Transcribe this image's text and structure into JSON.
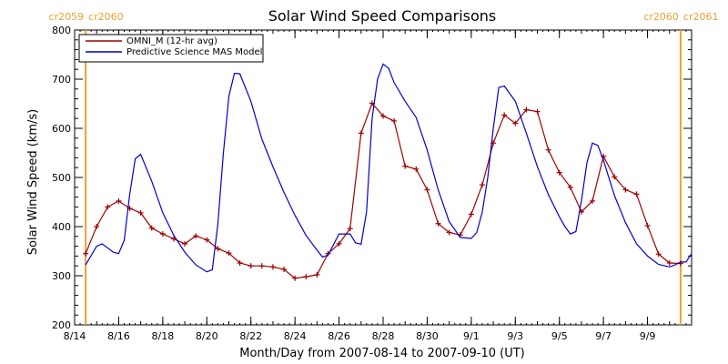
{
  "chart_data": {
    "type": "line",
    "title": "Solar Wind Speed Comparisons",
    "xlabel": "Month/Day from 2007-08-14 to 2007-09-10 (UT)",
    "ylabel": "Solar Wind Speed (km/s)",
    "ylim": [
      200,
      800
    ],
    "xlim": [
      "2007-08-14",
      "2007-09-10"
    ],
    "y_ticks": [
      200,
      300,
      400,
      500,
      600,
      700,
      800
    ],
    "x_ticks": [
      {
        "date": "2007-08-14",
        "label": "8/14"
      },
      {
        "date": "2007-08-16",
        "label": "8/16"
      },
      {
        "date": "2007-08-18",
        "label": "8/18"
      },
      {
        "date": "2007-08-20",
        "label": "8/20"
      },
      {
        "date": "2007-08-22",
        "label": "8/22"
      },
      {
        "date": "2007-08-24",
        "label": "8/24"
      },
      {
        "date": "2007-08-26",
        "label": "8/26"
      },
      {
        "date": "2007-08-28",
        "label": "8/28"
      },
      {
        "date": "2007-08-30",
        "label": "8/30"
      },
      {
        "date": "2007-09-01",
        "label": "9/1"
      },
      {
        "date": "2007-09-03",
        "label": "9/3"
      },
      {
        "date": "2007-09-05",
        "label": "9/5"
      },
      {
        "date": "2007-09-07",
        "label": "9/7"
      },
      {
        "date": "2007-09-09",
        "label": "9/9"
      }
    ],
    "legend_position": "top-left",
    "carrington_markers": [
      {
        "date": "2007-08-14 12:00",
        "left": "cr2059",
        "right": "cr2060"
      },
      {
        "date": "2007-09-10 12:00",
        "left": "cr2060",
        "right": "cr2061"
      }
    ],
    "series": [
      {
        "name": "OMNI_M (12-hr avg)",
        "color": "#a00000",
        "marker": "plus",
        "points": [
          [
            "2007-08-14 12:00",
            345
          ],
          [
            "2007-08-15 00:00",
            400
          ],
          [
            "2007-08-15 12:00",
            440
          ],
          [
            "2007-08-16 00:00",
            452
          ],
          [
            "2007-08-16 12:00",
            437
          ],
          [
            "2007-08-17 00:00",
            428
          ],
          [
            "2007-08-17 12:00",
            397
          ],
          [
            "2007-08-18 00:00",
            385
          ],
          [
            "2007-08-18 12:00",
            375
          ],
          [
            "2007-08-19 00:00",
            365
          ],
          [
            "2007-08-19 12:00",
            381
          ],
          [
            "2007-08-20 00:00",
            373
          ],
          [
            "2007-08-20 12:00",
            355
          ],
          [
            "2007-08-21 00:00",
            346
          ],
          [
            "2007-08-21 12:00",
            326
          ],
          [
            "2007-08-22 00:00",
            320
          ],
          [
            "2007-08-22 12:00",
            320
          ],
          [
            "2007-08-23 00:00",
            318
          ],
          [
            "2007-08-23 12:00",
            313
          ],
          [
            "2007-08-24 00:00",
            295
          ],
          [
            "2007-08-24 12:00",
            298
          ],
          [
            "2007-08-25 00:00",
            302
          ],
          [
            "2007-08-25 12:00",
            345
          ],
          [
            "2007-08-26 00:00",
            365
          ],
          [
            "2007-08-26 12:00",
            396
          ],
          [
            "2007-08-27 00:00",
            590
          ],
          [
            "2007-08-27 12:00",
            651
          ],
          [
            "2007-08-28 00:00",
            625
          ],
          [
            "2007-08-28 12:00",
            615
          ],
          [
            "2007-08-29 00:00",
            523
          ],
          [
            "2007-08-29 12:00",
            517
          ],
          [
            "2007-08-30 00:00",
            475
          ],
          [
            "2007-08-30 12:00",
            406
          ],
          [
            "2007-08-31 00:00",
            388
          ],
          [
            "2007-08-31 12:00",
            383
          ],
          [
            "2007-09-01 00:00",
            425
          ],
          [
            "2007-09-01 12:00",
            485
          ],
          [
            "2007-09-02 00:00",
            570
          ],
          [
            "2007-09-02 12:00",
            627
          ],
          [
            "2007-09-03 00:00",
            610
          ],
          [
            "2007-09-03 12:00",
            638
          ],
          [
            "2007-09-04 00:00",
            634
          ],
          [
            "2007-09-04 12:00",
            556
          ],
          [
            "2007-09-05 00:00",
            510
          ],
          [
            "2007-09-05 12:00",
            480
          ],
          [
            "2007-09-06 00:00",
            430
          ],
          [
            "2007-09-06 12:00",
            452
          ],
          [
            "2007-09-07 00:00",
            543
          ],
          [
            "2007-09-07 12:00",
            501
          ],
          [
            "2007-09-08 00:00",
            475
          ],
          [
            "2007-09-08 12:00",
            466
          ],
          [
            "2007-09-09 00:00",
            402
          ],
          [
            "2007-09-09 12:00",
            344
          ],
          [
            "2007-09-10 00:00",
            326
          ],
          [
            "2007-09-10 12:00",
            325
          ]
        ]
      },
      {
        "name": "Predictive Science MAS Model",
        "color": "#0000d0",
        "marker": "none",
        "points": [
          [
            "2007-08-14 12:00",
            322
          ],
          [
            "2007-08-15 00:00",
            360
          ],
          [
            "2007-08-15 06:00",
            365
          ],
          [
            "2007-08-15 18:00",
            348
          ],
          [
            "2007-08-16 00:00",
            345
          ],
          [
            "2007-08-16 06:00",
            372
          ],
          [
            "2007-08-16 12:00",
            465
          ],
          [
            "2007-08-16 18:00",
            538
          ],
          [
            "2007-08-17 00:00",
            547
          ],
          [
            "2007-08-17 12:00",
            492
          ],
          [
            "2007-08-18 00:00",
            428
          ],
          [
            "2007-08-18 12:00",
            382
          ],
          [
            "2007-08-19 00:00",
            348
          ],
          [
            "2007-08-19 12:00",
            322
          ],
          [
            "2007-08-20 00:00",
            308
          ],
          [
            "2007-08-20 06:00",
            312
          ],
          [
            "2007-08-20 12:00",
            405
          ],
          [
            "2007-08-20 18:00",
            548
          ],
          [
            "2007-08-21 00:00",
            665
          ],
          [
            "2007-08-21 06:00",
            712
          ],
          [
            "2007-08-21 12:00",
            711
          ],
          [
            "2007-08-22 00:00",
            655
          ],
          [
            "2007-08-22 12:00",
            578
          ],
          [
            "2007-08-23 00:00",
            522
          ],
          [
            "2007-08-23 12:00",
            470
          ],
          [
            "2007-08-24 00:00",
            423
          ],
          [
            "2007-08-24 12:00",
            382
          ],
          [
            "2007-08-25 00:00",
            352
          ],
          [
            "2007-08-25 06:00",
            338
          ],
          [
            "2007-08-25 12:00",
            342
          ],
          [
            "2007-08-26 00:00",
            385
          ],
          [
            "2007-08-26 12:00",
            385
          ],
          [
            "2007-08-26 18:00",
            367
          ],
          [
            "2007-08-27 00:00",
            364
          ],
          [
            "2007-08-27 06:00",
            430
          ],
          [
            "2007-08-27 12:00",
            620
          ],
          [
            "2007-08-27 18:00",
            700
          ],
          [
            "2007-08-28 00:00",
            731
          ],
          [
            "2007-08-28 06:00",
            722
          ],
          [
            "2007-08-28 12:00",
            693
          ],
          [
            "2007-08-29 00:00",
            655
          ],
          [
            "2007-08-29 12:00",
            622
          ],
          [
            "2007-08-30 00:00",
            556
          ],
          [
            "2007-08-30 12:00",
            475
          ],
          [
            "2007-08-31 00:00",
            410
          ],
          [
            "2007-08-31 12:00",
            378
          ],
          [
            "2007-09-01 00:00",
            376
          ],
          [
            "2007-09-01 06:00",
            388
          ],
          [
            "2007-09-01 12:00",
            430
          ],
          [
            "2007-09-01 18:00",
            500
          ],
          [
            "2007-09-02 00:00",
            600
          ],
          [
            "2007-09-02 06:00",
            683
          ],
          [
            "2007-09-02 12:00",
            686
          ],
          [
            "2007-09-03 00:00",
            655
          ],
          [
            "2007-09-03 12:00",
            590
          ],
          [
            "2007-09-04 00:00",
            522
          ],
          [
            "2007-09-04 12:00",
            465
          ],
          [
            "2007-09-05 00:00",
            420
          ],
          [
            "2007-09-05 06:00",
            400
          ],
          [
            "2007-09-05 12:00",
            385
          ],
          [
            "2007-09-05 18:00",
            390
          ],
          [
            "2007-09-06 00:00",
            452
          ],
          [
            "2007-09-06 06:00",
            530
          ],
          [
            "2007-09-06 12:00",
            570
          ],
          [
            "2007-09-06 18:00",
            565
          ],
          [
            "2007-09-07 00:00",
            535
          ],
          [
            "2007-09-07 12:00",
            463
          ],
          [
            "2007-09-08 00:00",
            408
          ],
          [
            "2007-09-08 12:00",
            365
          ],
          [
            "2007-09-09 00:00",
            340
          ],
          [
            "2007-09-09 12:00",
            323
          ],
          [
            "2007-09-10 00:00",
            318
          ],
          [
            "2007-09-10 06:00",
            322
          ],
          [
            "2007-09-10 12:00",
            328
          ],
          [
            "2007-09-10 18:00",
            328
          ],
          [
            "2007-09-11 00:00",
            345
          ]
        ]
      }
    ]
  }
}
